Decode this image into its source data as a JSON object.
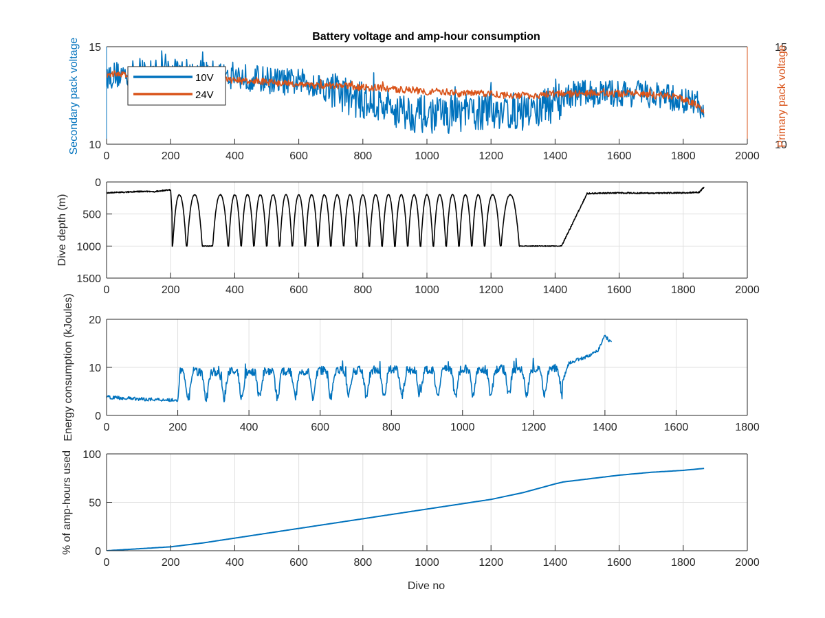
{
  "colors": {
    "blue": "#0072BD",
    "orange": "#D95319",
    "black": "#000000",
    "grid": "#DFDFDF",
    "axis": "#262626"
  },
  "chart_data": [
    {
      "type": "line",
      "title": "Battery voltage and amp-hour consumption",
      "xlabel": "",
      "ylabel_left": "Secondary pack voltage",
      "ylabel_right": "Primary pack voltage",
      "xlim": [
        0,
        2000
      ],
      "ylim": [
        10,
        15
      ],
      "ylim_right": [
        10,
        15
      ],
      "xticks": [
        "0",
        "200",
        "400",
        "600",
        "800",
        "1000",
        "1200",
        "1400",
        "1600",
        "1800",
        "2000"
      ],
      "yticks": [
        "10",
        "15"
      ],
      "yticks_right": [
        "10",
        "15"
      ],
      "grid": false,
      "legend": "top-left",
      "series": [
        {
          "name": "10V",
          "color": "#0072BD",
          "axis": "left",
          "x": [
            0,
            50,
            100,
            150,
            200,
            250,
            300,
            350,
            400,
            450,
            500,
            550,
            600,
            650,
            700,
            750,
            800,
            850,
            900,
            950,
            1000,
            1050,
            1100,
            1150,
            1200,
            1250,
            1300,
            1350,
            1400,
            1450,
            1500,
            1550,
            1600,
            1650,
            1700,
            1750,
            1800,
            1830,
            1850,
            1865
          ],
          "y": [
            13.5,
            13.6,
            13.6,
            13.7,
            13.7,
            13.7,
            13.6,
            13.6,
            13.5,
            13.4,
            13.3,
            13.2,
            13.2,
            13.1,
            12.8,
            12.5,
            12.2,
            12.0,
            11.8,
            11.6,
            11.5,
            11.5,
            11.6,
            11.6,
            11.7,
            11.7,
            11.6,
            11.8,
            12.1,
            12.6,
            12.6,
            12.6,
            12.6,
            12.6,
            12.5,
            12.4,
            12.2,
            12.1,
            12.0,
            11.6
          ],
          "noise": 0.7
        },
        {
          "name": "24V",
          "color": "#D95319",
          "axis": "right",
          "x": [
            0,
            50,
            100,
            150,
            200,
            250,
            300,
            350,
            400,
            450,
            500,
            550,
            600,
            650,
            700,
            750,
            800,
            850,
            900,
            950,
            1000,
            1050,
            1100,
            1150,
            1200,
            1250,
            1300,
            1350,
            1400,
            1450,
            1500,
            1550,
            1600,
            1650,
            1700,
            1750,
            1800,
            1830,
            1850,
            1865
          ],
          "y": [
            13.6,
            13.6,
            13.6,
            13.6,
            13.5,
            13.5,
            13.4,
            13.3,
            13.3,
            13.2,
            13.2,
            13.1,
            13.1,
            13.0,
            13.0,
            13.0,
            12.9,
            12.9,
            12.8,
            12.8,
            12.7,
            12.7,
            12.6,
            12.6,
            12.6,
            12.5,
            12.5,
            12.5,
            12.6,
            12.6,
            12.6,
            12.6,
            12.6,
            12.6,
            12.5,
            12.5,
            12.3,
            12.1,
            12.0,
            11.7
          ],
          "noise": 0.18
        }
      ]
    },
    {
      "type": "line",
      "title": "",
      "xlabel": "",
      "ylabel": "Dive depth (m)",
      "xlim": [
        0,
        2000
      ],
      "ylim": [
        0,
        1500
      ],
      "y_reversed": true,
      "xticks": [
        "0",
        "200",
        "400",
        "600",
        "800",
        "1000",
        "1200",
        "1400",
        "1600",
        "1800",
        "2000"
      ],
      "yticks": [
        "0",
        "500",
        "1000",
        "1500"
      ],
      "grid": true,
      "series": [
        {
          "color": "#000000",
          "x": [
            0,
            50,
            100,
            150,
            200,
            210,
            1420,
            1500,
            1600,
            1700,
            1800,
            1850,
            1865
          ],
          "y": [
            170,
            160,
            150,
            150,
            120,
            1000,
            1000,
            180,
            170,
            175,
            170,
            160,
            80
          ],
          "cycles": [
            [
              205,
              250
            ],
            [
              250,
              300
            ],
            [
              330,
              380
            ],
            [
              380,
              420
            ],
            [
              420,
              460
            ],
            [
              460,
              500
            ],
            [
              500,
              540
            ],
            [
              540,
              580
            ],
            [
              580,
              620
            ],
            [
              620,
              660
            ],
            [
              660,
              700
            ],
            [
              700,
              740
            ],
            [
              740,
              780
            ],
            [
              780,
              820
            ],
            [
              820,
              860
            ],
            [
              860,
              900
            ],
            [
              900,
              940
            ],
            [
              940,
              980
            ],
            [
              980,
              1020
            ],
            [
              1020,
              1060
            ],
            [
              1060,
              1100
            ],
            [
              1100,
              1140
            ],
            [
              1140,
              1180
            ],
            [
              1180,
              1230
            ],
            [
              1230,
              1290
            ]
          ]
        }
      ]
    },
    {
      "type": "line",
      "title": "",
      "xlabel": "",
      "ylabel": "Energy consumption (kJoules)",
      "xlim": [
        0,
        1800
      ],
      "ylim": [
        0,
        20
      ],
      "xticks": [
        "0",
        "200",
        "400",
        "600",
        "800",
        "1000",
        "1200",
        "1400",
        "1600",
        "1800"
      ],
      "yticks": [
        "0",
        "10",
        "20"
      ],
      "grid": true,
      "series": [
        {
          "color": "#0072BD",
          "x": [
            0,
            50,
            100,
            150,
            200,
            205,
            1280,
            1300,
            1320,
            1340,
            1360,
            1380,
            1400,
            1420
          ],
          "y": [
            3.8,
            3.6,
            3.4,
            3.3,
            3.2,
            7.5,
            7.0,
            11.0,
            11.5,
            12.0,
            12.5,
            13.5,
            16.5,
            15.0
          ],
          "cycle_period": 50,
          "cycle_low": 3.5,
          "cycle_high": 9.0
        }
      ]
    },
    {
      "type": "line",
      "title": "",
      "xlabel": "Dive no",
      "ylabel": "% of amp-hours used",
      "xlim": [
        0,
        2000
      ],
      "ylim": [
        0,
        100
      ],
      "xticks": [
        "0",
        "200",
        "400",
        "600",
        "800",
        "1000",
        "1200",
        "1400",
        "1600",
        "1800",
        "2000"
      ],
      "yticks": [
        "0",
        "50",
        "100"
      ],
      "grid": true,
      "series": [
        {
          "color": "#0072BD",
          "x": [
            0,
            100,
            200,
            300,
            400,
            500,
            600,
            700,
            800,
            900,
            1000,
            1100,
            1200,
            1300,
            1400,
            1425,
            1500,
            1600,
            1700,
            1800,
            1865
          ],
          "y": [
            0,
            2,
            4,
            8,
            13,
            18,
            23,
            28,
            33,
            38,
            43,
            48,
            53,
            60,
            69,
            71,
            74,
            78,
            81,
            83,
            85
          ]
        }
      ]
    }
  ]
}
